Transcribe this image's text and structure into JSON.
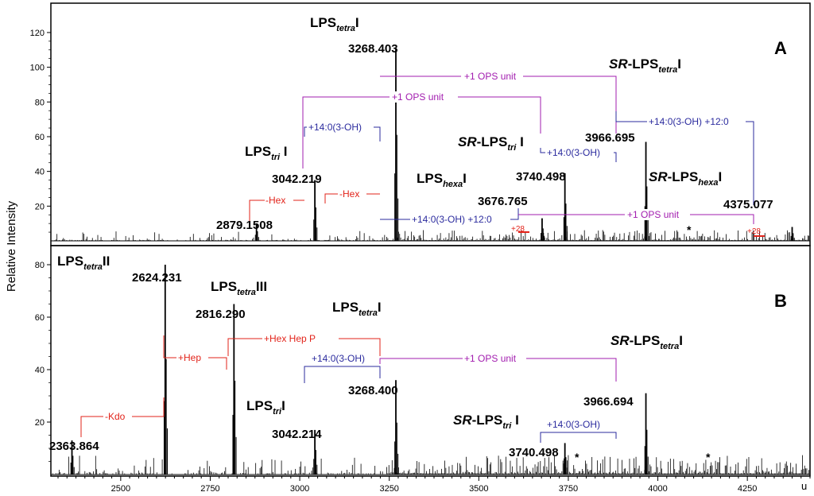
{
  "chart_data": [
    {
      "panel": "A",
      "type": "mass-spectrum",
      "ylabel": "Relative Intensity",
      "ylim": [
        0,
        135
      ],
      "yticks": [
        20,
        40,
        60,
        80,
        100,
        120
      ],
      "xlim": [
        2305,
        4425
      ],
      "peaks": [
        {
          "mz": 2879.1508,
          "label": "2879.1508",
          "intensity": 10
        },
        {
          "mz": 3042.219,
          "label": "3042.219",
          "intensity": 35
        },
        {
          "mz": 3268.403,
          "label": "3268.403",
          "intensity": 111
        },
        {
          "mz": 3676.765,
          "label": "3676.765",
          "intensity": 13
        },
        {
          "mz": 3740.498,
          "label": "3740.498",
          "intensity": 39
        },
        {
          "mz": 3966.695,
          "label": "3966.695",
          "intensity": 57
        },
        {
          "mz": 4375.077,
          "label": "4375.077",
          "intensity": 8
        }
      ],
      "species": [
        {
          "pre": "",
          "main": "LPS",
          "sub": "tetra",
          "post": "I"
        },
        {
          "pre": "",
          "main": "LPS",
          "sub": "tri",
          "post": " I"
        },
        {
          "pre": "SR",
          "main": "-LPS",
          "sub": "tri",
          "post": " I"
        },
        {
          "pre": "",
          "main": "LPS",
          "sub": "hexa",
          "post": "I"
        },
        {
          "pre": "SR",
          "main": "-LPS",
          "sub": "tetra",
          "post": "I"
        },
        {
          "pre": "SR",
          "main": "-LPS",
          "sub": "hexa",
          "post": "I"
        }
      ],
      "annotations": [
        "-Hex",
        "-Hex",
        "+14:0(3-OH)",
        "+1 OPS unit",
        "+1 OPS unit",
        "+14:0(3-OH)",
        "+14:0(3-OH) +12:0",
        "+14:0(3-OH) +12:0",
        "+1 OPS unit",
        "+28",
        "+28",
        "*"
      ]
    },
    {
      "panel": "B",
      "type": "mass-spectrum",
      "ylabel": "Relative Intensity",
      "ylim": [
        0,
        90
      ],
      "yticks": [
        20,
        40,
        60,
        80
      ],
      "xlim": [
        2305,
        4425
      ],
      "xlabel": "u",
      "xticks": [
        2500,
        2750,
        3000,
        3250,
        3500,
        3750,
        4000,
        4250
      ],
      "peaks": [
        {
          "mz": 2363.864,
          "label": "2363.864",
          "intensity": 13
        },
        {
          "mz": 2624.231,
          "label": "2624.231",
          "intensity": 80
        },
        {
          "mz": 2816.29,
          "label": "2816.290",
          "intensity": 65
        },
        {
          "mz": 3042.214,
          "label": "3042.214",
          "intensity": 17
        },
        {
          "mz": 3268.4,
          "label": "3268.400",
          "intensity": 36
        },
        {
          "mz": 3740.498,
          "label": "3740.498",
          "intensity": 12
        },
        {
          "mz": 3966.694,
          "label": "3966.694",
          "intensity": 31
        }
      ],
      "species": [
        {
          "pre": "",
          "main": "LPS",
          "sub": "tetra",
          "post": "II"
        },
        {
          "pre": "",
          "main": "LPS",
          "sub": "tetra",
          "post": "III"
        },
        {
          "pre": "",
          "main": "LPS",
          "sub": "tetra",
          "post": "I"
        },
        {
          "pre": "SR",
          "main": "-LPS",
          "sub": "tetra",
          "post": "I"
        },
        {
          "pre": "",
          "main": "LPS",
          "sub": "tri",
          "post": "I"
        },
        {
          "pre": "SR",
          "main": "-LPS",
          "sub": "tri",
          "post": " I"
        }
      ],
      "annotations": [
        "-Kdo",
        "+Hep",
        "+Hex Hep P",
        "+14:0(3-OH)",
        "+1 OPS unit",
        "+14:0(3-OH)",
        "*",
        "*"
      ]
    }
  ],
  "colors": {
    "hex": "#e2231a",
    "fa": "#2b2b9e",
    "ops": "#a21caf",
    "axis": "#000000"
  }
}
